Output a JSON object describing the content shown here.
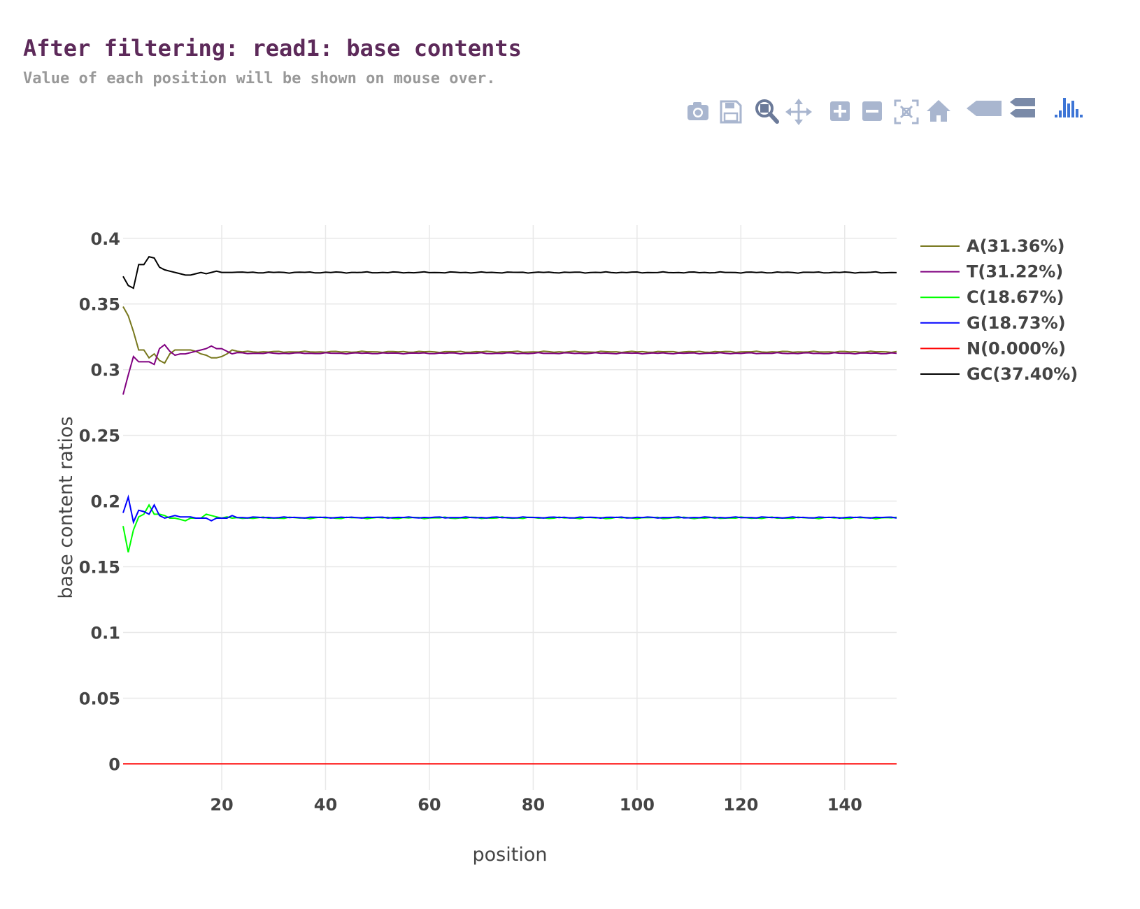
{
  "header": {
    "title": "After filtering: read1: base contents",
    "subtitle": "Value of each position will be shown on mouse over."
  },
  "modebar": {
    "buttons": [
      "camera-icon",
      "save-icon",
      "zoom-icon",
      "pan-icon",
      "zoom-in-icon",
      "zoom-out-icon",
      "autoscale-icon",
      "home-icon",
      "hover-closest-icon",
      "hover-compare-icon",
      "plotly-logo-icon"
    ]
  },
  "chart_data": {
    "type": "line",
    "xlabel": "position",
    "ylabel": "base content ratios",
    "xlim": [
      1,
      150
    ],
    "ylim": [
      -0.02,
      0.41
    ],
    "xticks": [
      20,
      40,
      60,
      80,
      100,
      120,
      140
    ],
    "yticks": [
      0,
      0.05,
      0.1,
      0.15,
      0.2,
      0.25,
      0.3,
      0.35,
      0.4
    ],
    "ytick_labels": [
      "0",
      "0.05",
      "0.1",
      "0.15",
      "0.2",
      "0.25",
      "0.3",
      "0.35",
      "0.4"
    ],
    "grid": true,
    "legend_position": "right",
    "series": [
      {
        "name": "A(31.36%)",
        "color": "#78781e",
        "head": [
          0.348,
          0.341,
          0.329,
          0.315,
          0.315,
          0.309,
          0.312,
          0.307,
          0.305,
          0.312,
          0.315,
          0.315,
          0.315,
          0.315,
          0.314,
          0.312,
          0.311,
          0.309,
          0.309,
          0.31,
          0.312,
          0.315,
          0.314
        ],
        "tail": 0.3136,
        "noise": 0.0005
      },
      {
        "name": "T(31.22%)",
        "color": "#800080",
        "head": [
          0.281,
          0.296,
          0.31,
          0.306,
          0.306,
          0.306,
          0.304,
          0.316,
          0.319,
          0.314,
          0.311,
          0.312,
          0.312,
          0.313,
          0.314,
          0.315,
          0.316,
          0.318,
          0.316,
          0.316,
          0.314,
          0.312,
          0.313
        ],
        "tail": 0.3125,
        "noise": 0.0005
      },
      {
        "name": "C(18.67%)",
        "color": "#00ff00",
        "head": [
          0.181,
          0.161,
          0.178,
          0.188,
          0.19,
          0.197,
          0.19,
          0.19,
          0.189,
          0.187,
          0.187,
          0.186,
          0.185,
          0.187,
          0.187,
          0.187,
          0.19,
          0.189,
          0.188,
          0.187,
          0.188,
          0.187
        ],
        "tail": 0.1872,
        "noise": 0.0007
      },
      {
        "name": "G(18.73%)",
        "color": "#0000ff",
        "head": [
          0.191,
          0.203,
          0.184,
          0.193,
          0.192,
          0.19,
          0.197,
          0.189,
          0.187,
          0.188,
          0.189,
          0.188,
          0.188,
          0.188,
          0.187,
          0.187,
          0.187,
          0.185,
          0.187,
          0.187,
          0.187,
          0.189
        ],
        "tail": 0.1875,
        "noise": 0.0005
      },
      {
        "name": "N(0.000%)",
        "color": "#ff0000",
        "head": [
          0.0
        ],
        "tail": 0.0,
        "noise": 0.0
      },
      {
        "name": "GC(37.40%)",
        "color": "#000000",
        "head": [
          0.371,
          0.364,
          0.362,
          0.38,
          0.38,
          0.386,
          0.385,
          0.378,
          0.376,
          0.375,
          0.374,
          0.373,
          0.372,
          0.372,
          0.373,
          0.374,
          0.373,
          0.374,
          0.375,
          0.374,
          0.374,
          0.374
        ],
        "tail": 0.374,
        "noise": 0.0005
      }
    ]
  }
}
